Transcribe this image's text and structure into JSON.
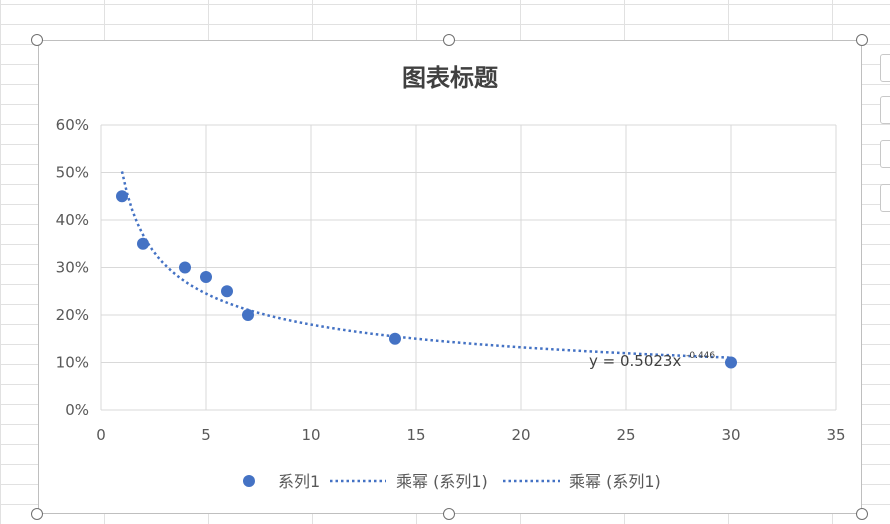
{
  "chart_data": {
    "type": "scatter",
    "title": "图表标题",
    "xlabel": "",
    "ylabel": "",
    "xlim": [
      0,
      35
    ],
    "ylim": [
      0,
      0.6
    ],
    "x_ticks": [
      0,
      5,
      10,
      15,
      20,
      25,
      30,
      35
    ],
    "x_tick_labels": [
      "0",
      "5",
      "10",
      "15",
      "20",
      "25",
      "30",
      "35"
    ],
    "y_ticks": [
      0,
      0.1,
      0.2,
      0.3,
      0.4,
      0.5,
      0.6
    ],
    "y_tick_labels": [
      "0%",
      "10%",
      "20%",
      "30%",
      "40%",
      "50%",
      "60%"
    ],
    "grid": true,
    "legend_position": "bottom",
    "series": [
      {
        "name": "系列1",
        "x": [
          1,
          2,
          4,
          5,
          6,
          7,
          14,
          30
        ],
        "y": [
          0.45,
          0.35,
          0.3,
          0.28,
          0.25,
          0.2,
          0.15,
          0.1
        ],
        "color": "#4472C4"
      }
    ],
    "trendlines": [
      {
        "name": "乘幂 (系列1)",
        "type": "power",
        "a": 0.5023,
        "b": -0.446,
        "x_range": [
          1,
          30
        ],
        "color": "#4472C4"
      },
      {
        "name": "乘幂 (系列1)",
        "type": "power",
        "a": 0.5023,
        "b": -0.446,
        "x_range": [
          1,
          30
        ],
        "color": "#4472C4"
      }
    ],
    "equation": {
      "base": "y = 0.5023x",
      "exponent": "-0.446"
    }
  }
}
